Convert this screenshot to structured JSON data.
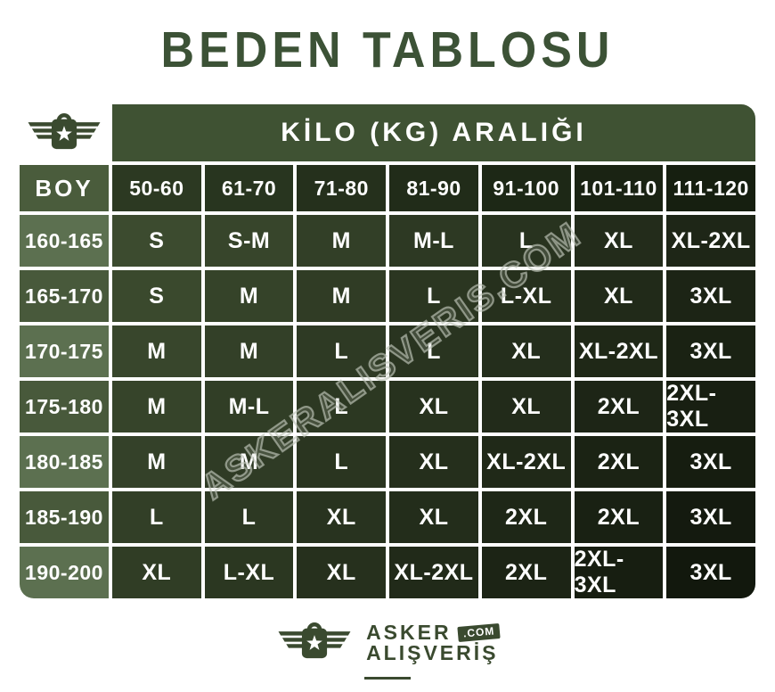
{
  "page_title": "BEDEN TABLOSU",
  "table": {
    "kilo_header": "KİLO (KG) ARALIĞI",
    "boy_header": "BOY"
  },
  "chart_data": {
    "type": "table",
    "title": "BEDEN TABLOSU",
    "column_group_label": "KİLO (KG) ARALIĞI",
    "row_header_label": "BOY",
    "columns": [
      "50-60",
      "61-70",
      "71-80",
      "81-90",
      "91-100",
      "101-110",
      "111-120"
    ],
    "rows": [
      {
        "height": "160-165",
        "sizes": [
          "S",
          "S-M",
          "M",
          "M-L",
          "L",
          "XL",
          "XL-2XL"
        ]
      },
      {
        "height": "165-170",
        "sizes": [
          "S",
          "M",
          "M",
          "L",
          "L-XL",
          "XL",
          "3XL"
        ]
      },
      {
        "height": "170-175",
        "sizes": [
          "M",
          "M",
          "L",
          "L",
          "XL",
          "XL-2XL",
          "3XL"
        ]
      },
      {
        "height": "175-180",
        "sizes": [
          "M",
          "M-L",
          "L",
          "XL",
          "XL",
          "2XL",
          "2XL-3XL"
        ]
      },
      {
        "height": "180-185",
        "sizes": [
          "M",
          "M",
          "L",
          "XL",
          "XL-2XL",
          "2XL",
          "3XL"
        ]
      },
      {
        "height": "185-190",
        "sizes": [
          "L",
          "L",
          "XL",
          "XL",
          "2XL",
          "2XL",
          "3XL"
        ]
      },
      {
        "height": "190-200",
        "sizes": [
          "XL",
          "L-XL",
          "XL",
          "XL-2XL",
          "2XL",
          "2XL-3XL",
          "3XL"
        ]
      }
    ]
  },
  "watermark": "ASKERALISVERIS.COM",
  "footer": {
    "brand_top": "ASKER",
    "brand_bottom": "ALIŞVERİŞ",
    "badge": ".COM"
  },
  "colors": {
    "title_green": "#3C5236",
    "logo_green": "#3A4A2F",
    "kilo_bar": "#3F5233",
    "boy_header_bg": "#4A5C3C",
    "boy_row_light": "#5C7050",
    "boy_row_dark": "#48593B",
    "header_gradient_start": "#2C3922",
    "header_gradient_end": "#161F10",
    "cell_gradient_start": "#3C4B2F",
    "cell_gradient_end": "#12180D",
    "watermark_gray": "#BEC4B9"
  }
}
